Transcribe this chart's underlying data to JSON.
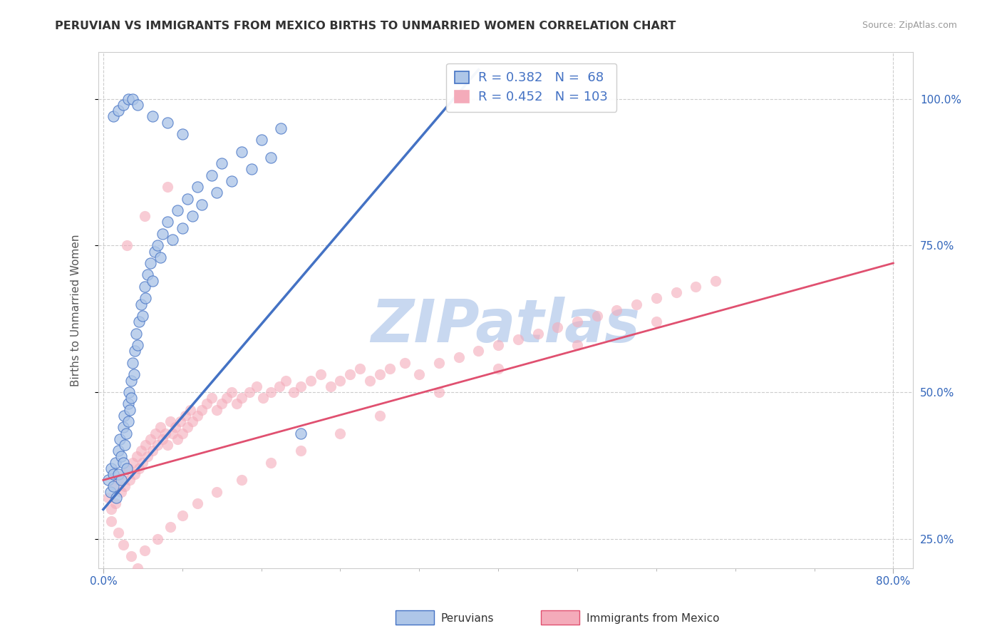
{
  "title": "PERUVIAN VS IMMIGRANTS FROM MEXICO BIRTHS TO UNMARRIED WOMEN CORRELATION CHART",
  "source": "Source: ZipAtlas.com",
  "ylabel_left": "Births to Unmarried Women",
  "legend_label1": "Peruvians",
  "legend_label2": "Immigrants from Mexico",
  "R1": 0.382,
  "N1": 68,
  "R2": 0.452,
  "N2": 103,
  "xlim": [
    -0.005,
    0.82
  ],
  "ylim": [
    0.2,
    1.08
  ],
  "yticks_right": [
    0.25,
    0.5,
    0.75,
    1.0
  ],
  "ytick_labels_right": [
    "25.0%",
    "50.0%",
    "75.0%",
    "100.0%"
  ],
  "color_blue": "#4472C4",
  "color_pink": "#F4ABBA",
  "color_blue_fill": "#AEC6E8",
  "color_pink_line": "#E05070",
  "watermark": "ZIPatlas",
  "watermark_color": "#C8D8F0",
  "background_color": "#FFFFFF",
  "peru_x": [
    0.005,
    0.007,
    0.008,
    0.01,
    0.01,
    0.012,
    0.013,
    0.015,
    0.015,
    0.017,
    0.018,
    0.018,
    0.02,
    0.02,
    0.021,
    0.022,
    0.023,
    0.024,
    0.025,
    0.025,
    0.026,
    0.027,
    0.028,
    0.028,
    0.03,
    0.031,
    0.032,
    0.033,
    0.035,
    0.036,
    0.038,
    0.04,
    0.042,
    0.043,
    0.045,
    0.048,
    0.05,
    0.052,
    0.055,
    0.058,
    0.06,
    0.065,
    0.07,
    0.075,
    0.08,
    0.085,
    0.09,
    0.095,
    0.1,
    0.11,
    0.115,
    0.12,
    0.13,
    0.14,
    0.15,
    0.16,
    0.17,
    0.18,
    0.01,
    0.015,
    0.02,
    0.025,
    0.03,
    0.035,
    0.05,
    0.065,
    0.08,
    0.2
  ],
  "peru_y": [
    0.35,
    0.33,
    0.37,
    0.34,
    0.36,
    0.38,
    0.32,
    0.4,
    0.36,
    0.42,
    0.35,
    0.39,
    0.44,
    0.38,
    0.46,
    0.41,
    0.43,
    0.37,
    0.48,
    0.45,
    0.5,
    0.47,
    0.52,
    0.49,
    0.55,
    0.53,
    0.57,
    0.6,
    0.58,
    0.62,
    0.65,
    0.63,
    0.68,
    0.66,
    0.7,
    0.72,
    0.69,
    0.74,
    0.75,
    0.73,
    0.77,
    0.79,
    0.76,
    0.81,
    0.78,
    0.83,
    0.8,
    0.85,
    0.82,
    0.87,
    0.84,
    0.89,
    0.86,
    0.91,
    0.88,
    0.93,
    0.9,
    0.95,
    0.97,
    0.98,
    0.99,
    1.0,
    1.0,
    0.99,
    0.97,
    0.96,
    0.94,
    0.43
  ],
  "mex_x": [
    0.005,
    0.008,
    0.01,
    0.012,
    0.015,
    0.018,
    0.02,
    0.022,
    0.025,
    0.027,
    0.03,
    0.032,
    0.034,
    0.036,
    0.038,
    0.04,
    0.043,
    0.045,
    0.048,
    0.05,
    0.053,
    0.055,
    0.058,
    0.06,
    0.063,
    0.065,
    0.068,
    0.07,
    0.073,
    0.075,
    0.078,
    0.08,
    0.083,
    0.085,
    0.088,
    0.09,
    0.095,
    0.1,
    0.105,
    0.11,
    0.115,
    0.12,
    0.125,
    0.13,
    0.135,
    0.14,
    0.148,
    0.155,
    0.162,
    0.17,
    0.178,
    0.185,
    0.193,
    0.2,
    0.21,
    0.22,
    0.23,
    0.24,
    0.25,
    0.26,
    0.27,
    0.28,
    0.29,
    0.305,
    0.32,
    0.34,
    0.36,
    0.38,
    0.4,
    0.42,
    0.44,
    0.46,
    0.48,
    0.5,
    0.52,
    0.54,
    0.56,
    0.58,
    0.6,
    0.62,
    0.008,
    0.015,
    0.02,
    0.028,
    0.035,
    0.042,
    0.055,
    0.068,
    0.08,
    0.095,
    0.115,
    0.14,
    0.17,
    0.2,
    0.24,
    0.28,
    0.34,
    0.4,
    0.48,
    0.56,
    0.024,
    0.042,
    0.065
  ],
  "mex_y": [
    0.32,
    0.3,
    0.34,
    0.31,
    0.35,
    0.33,
    0.36,
    0.34,
    0.37,
    0.35,
    0.38,
    0.36,
    0.39,
    0.37,
    0.4,
    0.38,
    0.41,
    0.39,
    0.42,
    0.4,
    0.43,
    0.41,
    0.44,
    0.42,
    0.43,
    0.41,
    0.45,
    0.43,
    0.44,
    0.42,
    0.45,
    0.43,
    0.46,
    0.44,
    0.47,
    0.45,
    0.46,
    0.47,
    0.48,
    0.49,
    0.47,
    0.48,
    0.49,
    0.5,
    0.48,
    0.49,
    0.5,
    0.51,
    0.49,
    0.5,
    0.51,
    0.52,
    0.5,
    0.51,
    0.52,
    0.53,
    0.51,
    0.52,
    0.53,
    0.54,
    0.52,
    0.53,
    0.54,
    0.55,
    0.53,
    0.55,
    0.56,
    0.57,
    0.58,
    0.59,
    0.6,
    0.61,
    0.62,
    0.63,
    0.64,
    0.65,
    0.66,
    0.67,
    0.68,
    0.69,
    0.28,
    0.26,
    0.24,
    0.22,
    0.2,
    0.23,
    0.25,
    0.27,
    0.29,
    0.31,
    0.33,
    0.35,
    0.38,
    0.4,
    0.43,
    0.46,
    0.5,
    0.54,
    0.58,
    0.62,
    0.75,
    0.8,
    0.85
  ],
  "blue_line_x": [
    0.0,
    0.38
  ],
  "blue_line_y": [
    0.3,
    1.05
  ],
  "pink_line_x": [
    0.0,
    0.8
  ],
  "pink_line_y": [
    0.35,
    0.72
  ]
}
